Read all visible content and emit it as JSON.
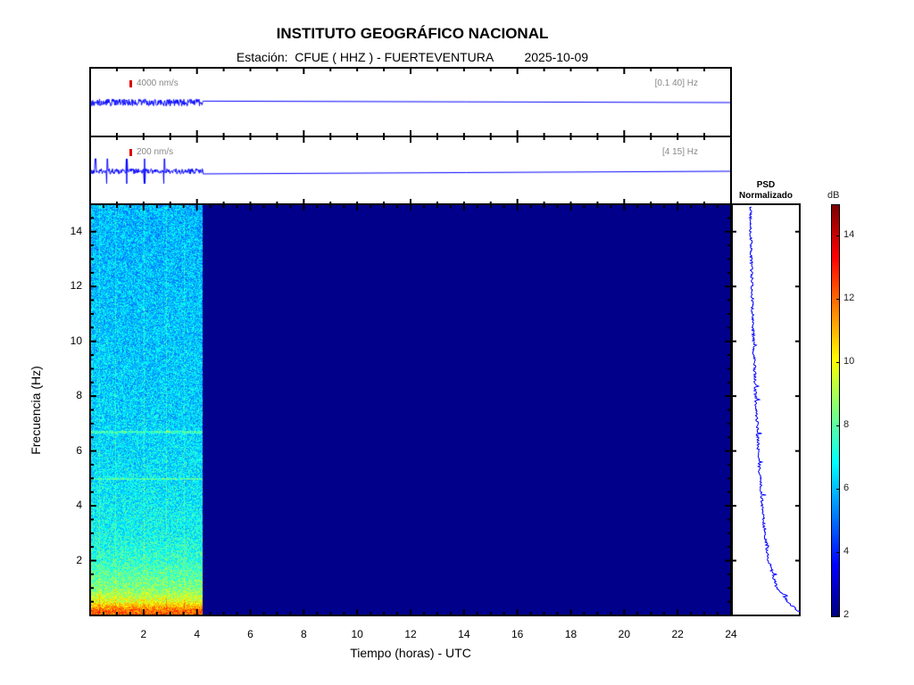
{
  "header": {
    "title": "INSTITUTO GEOGRÁFICO NACIONAL",
    "station_line": "Estación:  CFUE ( HHZ ) - FUERTEVENTURA         2025-10-09"
  },
  "traces": [
    {
      "scale": "4000 nm/s",
      "band": "[0.1 40] Hz"
    },
    {
      "scale": "200 nm/s",
      "band": "[4 15] Hz"
    }
  ],
  "psd": {
    "title_line1": "PSD",
    "title_line2": "Normalizado"
  },
  "colorbar": {
    "unit": "dB",
    "min": 2,
    "max": 15,
    "ticks": [
      "2",
      "4",
      "6",
      "8",
      "10",
      "12",
      "14"
    ]
  },
  "colors": {
    "trace": "#0000ff",
    "background_spectrogram": "#00008b",
    "scale_marker": "#e00000"
  },
  "chart_data": {
    "type": "heatmap",
    "title": "INSTITUTO GEOGRÁFICO NACIONAL",
    "xlabel": "Tiempo (horas) - UTC",
    "ylabel": "Frecuencia  (Hz)",
    "xlim": [
      0,
      24
    ],
    "ylim": [
      0,
      15
    ],
    "xticks": [
      "2",
      "4",
      "6",
      "8",
      "10",
      "12",
      "14",
      "16",
      "18",
      "20",
      "22",
      "24"
    ],
    "yticks": [
      "2",
      "4",
      "6",
      "8",
      "10",
      "12",
      "14"
    ],
    "data_end_hour": 4.2,
    "color_range_db": [
      2,
      15
    ],
    "spectrogram_profile": {
      "freq_hz": [
        0.2,
        0.5,
        1,
        2,
        3,
        4,
        6,
        8,
        10,
        12,
        14
      ],
      "level_db": [
        12,
        10,
        8.5,
        7.5,
        7,
        6.8,
        6.5,
        6.3,
        6.2,
        6.1,
        6
      ]
    },
    "psd_profile": {
      "freq_hz": [
        0.1,
        0.5,
        1,
        2,
        3,
        4,
        5,
        6,
        8,
        10,
        12,
        14,
        15
      ],
      "normalized": [
        0.95,
        0.75,
        0.55,
        0.4,
        0.33,
        0.28,
        0.24,
        0.21,
        0.16,
        0.12,
        0.09,
        0.07,
        0.06
      ]
    }
  }
}
